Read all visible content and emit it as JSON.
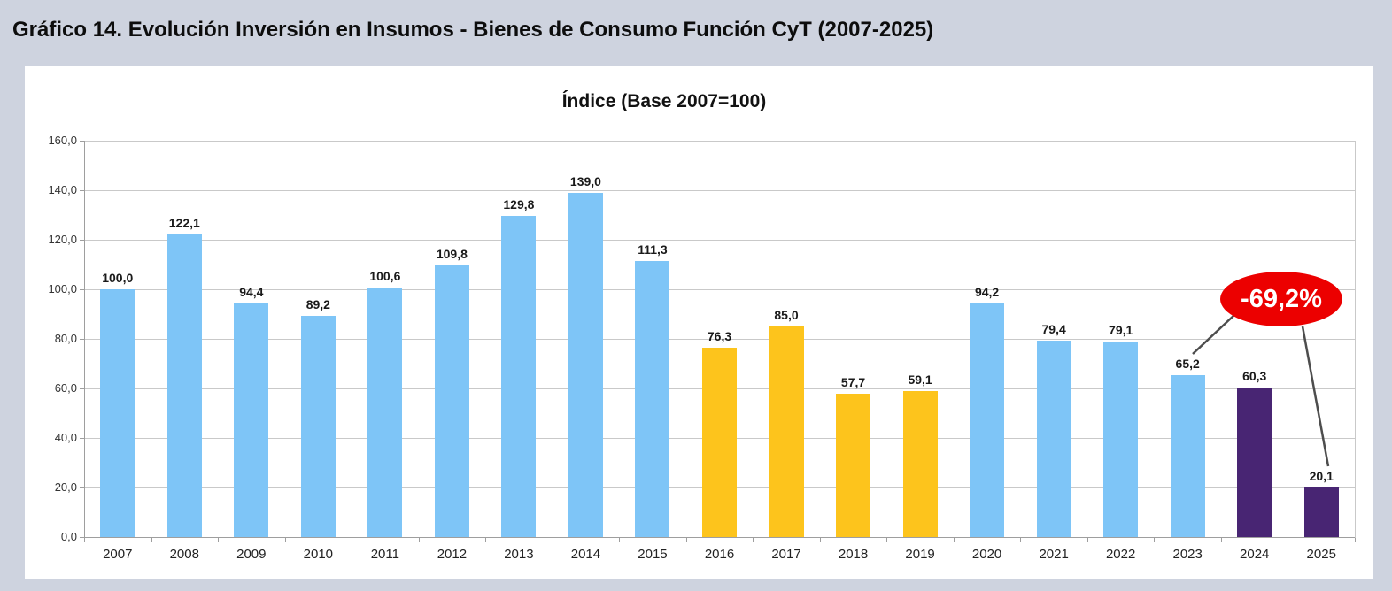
{
  "page": {
    "title": "Gráfico 14. Evolución Inversión en Insumos - Bienes de Consumo Función CyT (2007-2025)",
    "background_color": "#CED3DF",
    "card_color": "#FFFFFF"
  },
  "chart_data": {
    "type": "bar",
    "title": "Índice (Base 2007=100)",
    "categories": [
      "2007",
      "2008",
      "2009",
      "2010",
      "2011",
      "2012",
      "2013",
      "2014",
      "2015",
      "2016",
      "2017",
      "2018",
      "2019",
      "2020",
      "2021",
      "2022",
      "2023",
      "2024",
      "2025"
    ],
    "values": [
      100.0,
      122.1,
      94.4,
      89.2,
      100.6,
      109.8,
      129.8,
      139.0,
      111.3,
      76.3,
      85.0,
      57.7,
      59.1,
      94.2,
      79.4,
      79.1,
      65.2,
      60.3,
      20.1
    ],
    "value_labels": [
      "100,0",
      "122,1",
      "94,4",
      "89,2",
      "100,6",
      "109,8",
      "129,8",
      "139,0",
      "111,3",
      "76,3",
      "85,0",
      "57,7",
      "59,1",
      "94,2",
      "79,4",
      "79,1",
      "65,2",
      "60,3",
      "20,1"
    ],
    "bar_color_keys": [
      "blue",
      "blue",
      "blue",
      "blue",
      "blue",
      "blue",
      "blue",
      "blue",
      "blue",
      "yellow",
      "yellow",
      "yellow",
      "yellow",
      "blue",
      "blue",
      "blue",
      "blue",
      "purple",
      "purple"
    ],
    "palette": {
      "blue": "#7EC5F7",
      "yellow": "#FDC41C",
      "purple": "#482573"
    },
    "xlabel": "",
    "ylabel": "",
    "ylim": [
      0,
      160
    ],
    "ytick_step": 20,
    "ytick_labels": [
      "0,0",
      "20,0",
      "40,0",
      "60,0",
      "80,0",
      "100,0",
      "120,0",
      "140,0",
      "160,0"
    ],
    "grid": true,
    "legend": "none",
    "annotation": {
      "label": "-69,2%",
      "fill_color": "#EC0000",
      "text_color": "#FFFFFF",
      "line_color": "#4D4D4D",
      "points_to": [
        "2023",
        "2025"
      ]
    },
    "colors_meaning": {
      "gridline": "#C9C9C9",
      "axis": "#9E9E9E"
    }
  }
}
